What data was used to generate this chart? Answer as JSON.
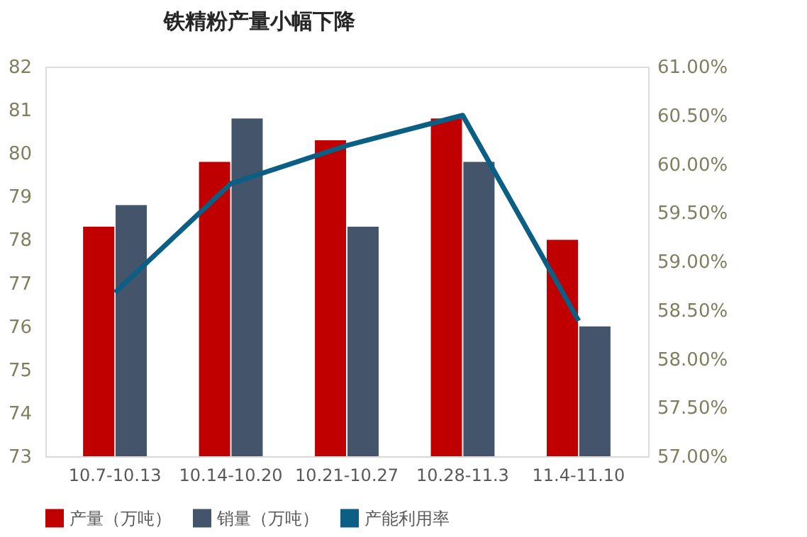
{
  "chart_data": {
    "type": "bar",
    "title": "铁精粉产量小幅下降",
    "categories": [
      "10.7-10.13",
      "10.14-10.20",
      "10.21-10.27",
      "10.28-11.3",
      "11.4-11.10"
    ],
    "series": [
      {
        "name": "产量（万吨）",
        "color": "#c00000",
        "values": [
          78.3,
          79.8,
          80.3,
          80.8,
          78.0
        ]
      },
      {
        "name": "销量（万吨）",
        "color": "#44546a",
        "values": [
          78.8,
          80.8,
          78.3,
          79.8,
          76.0
        ]
      },
      {
        "name": "产能利用率",
        "type": "line",
        "axis": "y2",
        "color": "#0b5e84",
        "values": [
          58.68,
          59.8,
          60.19,
          60.5,
          58.39
        ]
      }
    ],
    "ylim": [
      73,
      82
    ],
    "yticks": [
      73,
      74,
      75,
      76,
      77,
      78,
      79,
      80,
      81,
      82
    ],
    "y2lim": [
      57,
      61
    ],
    "y2ticks": [
      {
        "value": 57,
        "label": "57.00%"
      },
      {
        "value": 57.5,
        "label": "57.50%"
      },
      {
        "value": 58,
        "label": "58.00%"
      },
      {
        "value": 58.5,
        "label": "58.50%"
      },
      {
        "value": 59,
        "label": "59.00%"
      },
      {
        "value": 59.5,
        "label": "59.50%"
      },
      {
        "value": 60,
        "label": "60.00%"
      },
      {
        "value": 60.5,
        "label": "60.50%"
      },
      {
        "value": 61,
        "label": "61.00%"
      }
    ],
    "grid": false,
    "legend": "bottom",
    "marker": "none",
    "line_style": "solid"
  }
}
